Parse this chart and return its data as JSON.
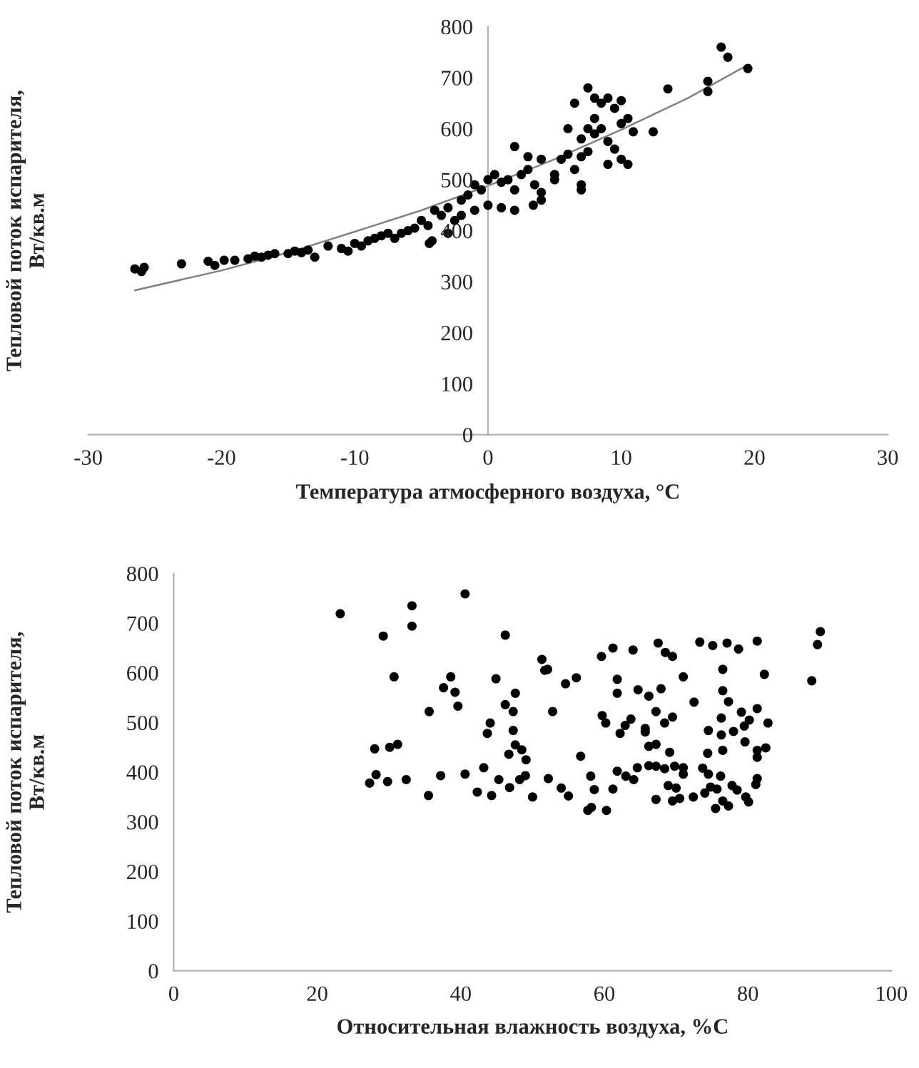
{
  "chart_data": [
    {
      "type": "scatter",
      "xlabel": "Температура атмосферного воздуха, °С",
      "ylabel": "Тепловой поток испарителя,\nВт/кв.м",
      "xlim": [
        -30,
        30
      ],
      "xticks": [
        -30,
        -20,
        -10,
        0,
        10,
        20,
        30
      ],
      "ylim": [
        0,
        800
      ],
      "yticks": [
        0,
        100,
        200,
        300,
        400,
        500,
        600,
        700,
        800
      ],
      "grid": false,
      "series": [
        {
          "type": "scatter",
          "marker": "circle",
          "color": "#000000",
          "x": [
            -26.5,
            -26,
            -25.8,
            -23,
            -21,
            -20.5,
            -19.8,
            -19,
            -18,
            -17.5,
            -17,
            -16.5,
            -16,
            -15,
            -14.5,
            -14,
            -13.5,
            -13,
            -12,
            -11,
            -10.5,
            -10,
            -9.5,
            -9,
            -8.5,
            -8,
            -7.5,
            -7,
            -6.5,
            -6,
            -5.5,
            -5,
            -4.5,
            -4,
            -3.5,
            -3,
            -4.2,
            -4.4,
            -3,
            -2,
            -2.5,
            -1.5,
            -1,
            -0.5,
            0,
            -1,
            -2,
            0,
            0.5,
            1,
            1.5,
            2,
            2.5,
            3,
            3.5,
            4,
            4,
            3.4,
            2,
            1,
            5,
            5.5,
            5,
            6,
            6.5,
            7,
            7.5,
            8,
            8.5,
            9,
            9.5,
            10,
            10.5,
            6,
            7,
            7.5,
            8,
            9,
            7,
            7,
            8.5,
            9,
            9.5,
            10,
            10.5,
            10.9,
            12.4,
            13.5,
            7.5,
            8,
            10,
            16.5,
            16.5,
            17.5,
            18,
            19.5,
            2,
            3,
            4,
            6.5
          ],
          "values": [
            325,
            320,
            328,
            335,
            340,
            332,
            342,
            342,
            345,
            350,
            348,
            352,
            355,
            355,
            360,
            357,
            362,
            348,
            370,
            365,
            360,
            375,
            370,
            380,
            385,
            390,
            395,
            385,
            395,
            400,
            405,
            420,
            410,
            440,
            430,
            445,
            380,
            375,
            395,
            460,
            420,
            470,
            490,
            480,
            500,
            440,
            430,
            450,
            510,
            495,
            500,
            480,
            510,
            520,
            490,
            475,
            460,
            450,
            440,
            445,
            500,
            540,
            510,
            550,
            520,
            545,
            555,
            590,
            600,
            575,
            560,
            540,
            530,
            600,
            580,
            600,
            620,
            530,
            480,
            490,
            650,
            660,
            640,
            655,
            620,
            594,
            594,
            678,
            680,
            660,
            610,
            673,
            693,
            760,
            740,
            718,
            565,
            545,
            540,
            650
          ]
        },
        {
          "type": "line",
          "color": "#808080",
          "line_style": "solid",
          "x": [
            -26.5,
            -20,
            -15,
            -10,
            -5,
            0,
            5,
            10,
            15,
            19.5
          ],
          "values": [
            283,
            322,
            357,
            398,
            440,
            488,
            540,
            598,
            660,
            725
          ]
        }
      ]
    },
    {
      "type": "scatter",
      "xlabel": "Относительная влажность воздуха, %С",
      "ylabel": "Тепловой поток испарителя,\nВт/кв.м",
      "xlim": [
        0,
        100
      ],
      "xticks": [
        0,
        20,
        40,
        60,
        80,
        100
      ],
      "ylim": [
        0,
        800
      ],
      "yticks": [
        0,
        100,
        200,
        300,
        400,
        500,
        600,
        700,
        800
      ],
      "grid": false,
      "series": [
        {
          "type": "scatter",
          "marker": "circle",
          "color": "#000000",
          "x": [
            23.2,
            33.2,
            33.2,
            29.2,
            40.6,
            46.2,
            30.7,
            38.6,
            37.6,
            39.2,
            39.6,
            35.6,
            44.9,
            47.6,
            46.2,
            47.3,
            44.1,
            43.7,
            47.3,
            28.0,
            30.1,
            31.2,
            47.6,
            48.5,
            46.7,
            28.2,
            27.3,
            29.8,
            32.4,
            37.2,
            40.6,
            43.2,
            35.5,
            42.3,
            44.3,
            45.3,
            46.8,
            48.2,
            49.0,
            49.1,
            51.3,
            52.1,
            51.7,
            54.6,
            56.1,
            52.8,
            52.2,
            50.0,
            54.0,
            55.0,
            56.7,
            58.1,
            58.6,
            57.7,
            58.2,
            60.3,
            61.2,
            59.6,
            61.2,
            64.0,
            67.5,
            68.5,
            69.5,
            61.8,
            61.8,
            64.7,
            66.2,
            67.9,
            71.0,
            73.3,
            75.1,
            77.1,
            78.7,
            81.3,
            82.3,
            76.5,
            76.5,
            77.3,
            72.5,
            81.3,
            79.1,
            82.8,
            80.2,
            79.5,
            78.0,
            76.3,
            76.3,
            74.5,
            76.5,
            79.6,
            81.3,
            82.5,
            81.3,
            74.4,
            59.7,
            60.2,
            62.9,
            62.2,
            63.7,
            65.7,
            65.7,
            67.2,
            68.4,
            69.5,
            66.2,
            67.2,
            69.1,
            61.8,
            63.0,
            64.1,
            64.6,
            66.2,
            67.2,
            68.4,
            69.8,
            71.0,
            71.0,
            73.7,
            74.5,
            76.2,
            68.9,
            67.2,
            70.0,
            69.5,
            70.5,
            72.4,
            74.0,
            74.8,
            75.7,
            75.5,
            76.5,
            77.3,
            77.8,
            78.5,
            79.7,
            80.1,
            81.1,
            81.3,
            88.9,
            89.7,
            90.1
          ],
          "values": [
            719,
            735,
            694,
            674,
            759,
            676,
            592,
            592,
            570,
            561,
            533,
            522,
            588,
            559,
            536,
            522,
            499,
            478,
            484,
            447,
            450,
            456,
            455,
            445,
            436,
            395,
            378,
            381,
            385,
            393,
            396,
            409,
            353,
            360,
            353,
            385,
            369,
            385,
            393,
            425,
            627,
            607,
            605,
            578,
            590,
            522,
            387,
            350,
            368,
            352,
            432,
            392,
            365,
            323,
            329,
            323,
            366,
            633,
            650,
            646,
            660,
            641,
            633,
            587,
            559,
            566,
            553,
            568,
            592,
            662,
            655,
            660,
            648,
            664,
            597,
            607,
            564,
            542,
            541,
            528,
            521,
            499,
            505,
            493,
            482,
            509,
            475,
            484,
            444,
            461,
            444,
            449,
            430,
            438,
            514,
            499,
            494,
            478,
            507,
            488,
            481,
            522,
            499,
            511,
            452,
            456,
            440,
            402,
            392,
            385,
            409,
            413,
            412,
            407,
            412,
            409,
            396,
            408,
            396,
            392,
            373,
            345,
            368,
            342,
            347,
            350,
            358,
            370,
            366,
            327,
            342,
            332,
            373,
            364,
            350,
            340,
            375,
            387,
            584,
            657,
            683
          ]
        }
      ]
    }
  ]
}
